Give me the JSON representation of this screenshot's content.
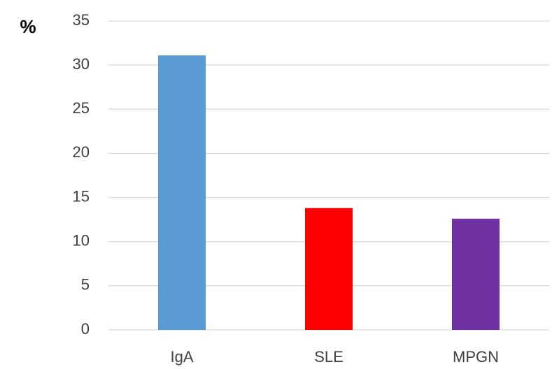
{
  "chart_data": {
    "type": "bar",
    "y_label": "%",
    "categories": [
      "IgA",
      "SLE",
      "MPGN"
    ],
    "values": [
      31.1,
      13.8,
      12.6
    ],
    "colors": [
      "#5b9bd5",
      "#ff0000",
      "#7030a0"
    ],
    "ylim": [
      0,
      35
    ],
    "yticks": [
      0,
      5,
      10,
      15,
      20,
      25,
      30,
      35
    ],
    "grid": true
  }
}
